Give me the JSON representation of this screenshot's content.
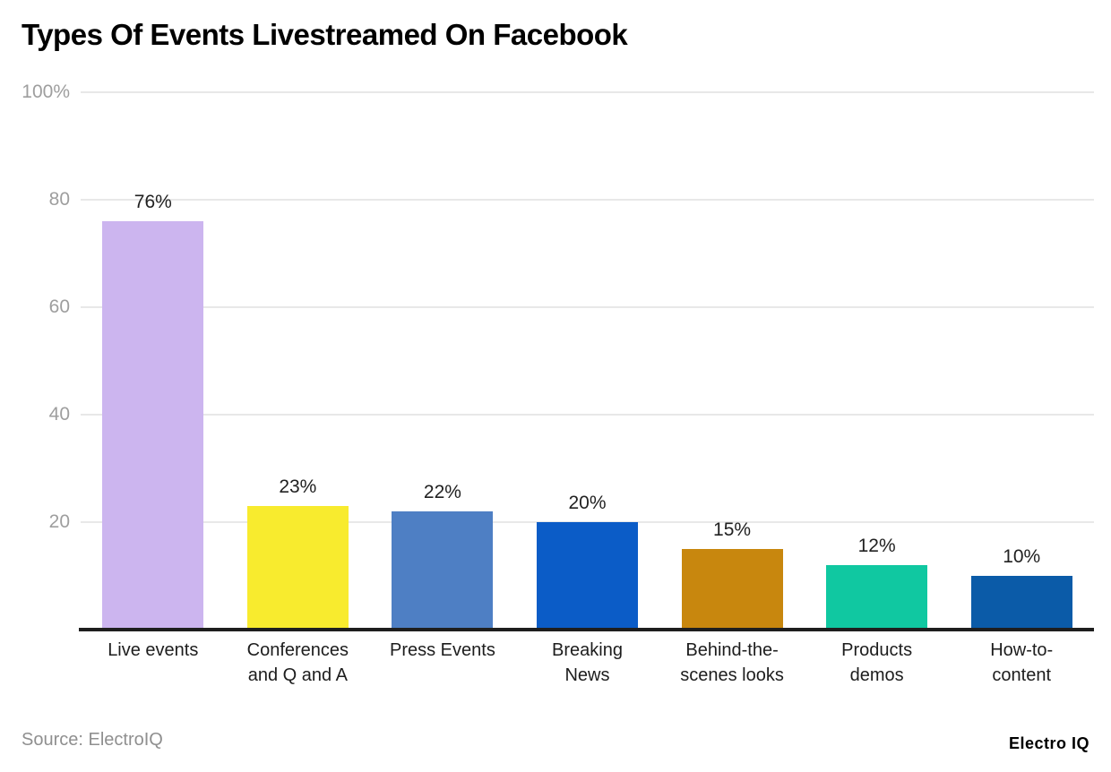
{
  "title": "Types Of Events Livestreamed On Facebook",
  "source": "Source: ElectroIQ",
  "brand": "Electro IQ",
  "colors": {
    "title_text": "#000000",
    "grid": "#e8e8e8",
    "axis_line": "#1e1e1e",
    "tick_text": "#9e9e9e",
    "label_text": "#1d1d1d",
    "source_text": "#8f8f8f"
  },
  "chart_data": {
    "type": "bar",
    "title": "Types Of Events Livestreamed On Facebook",
    "xlabel": "",
    "ylabel": "",
    "ylim": [
      0,
      100
    ],
    "grid": true,
    "legend": false,
    "value_suffix": "%",
    "categories": [
      "Live events",
      "Conferences and Q and A",
      "Press Events",
      "Breaking News",
      "Behind-the-scenes looks",
      "Products demos",
      "How-to-content"
    ],
    "category_lines": [
      [
        "Live events"
      ],
      [
        "Conferences",
        "and Q and A"
      ],
      [
        "Press Events"
      ],
      [
        "Breaking",
        "News"
      ],
      [
        "Behind-the-",
        "scenes looks"
      ],
      [
        "Products",
        "demos"
      ],
      [
        "How-to-",
        "content"
      ]
    ],
    "values": [
      76,
      23,
      22,
      20,
      15,
      12,
      10
    ],
    "value_labels": [
      "76%",
      "23%",
      "22%",
      "20%",
      "15%",
      "12%",
      "10%"
    ],
    "bar_colors": [
      "#ccb5ef",
      "#f8eb2e",
      "#4e7fc4",
      "#0b5cc7",
      "#c8870e",
      "#10c8a1",
      "#0b5ba8"
    ],
    "yticks": [
      {
        "value": 100,
        "label": "100%"
      },
      {
        "value": 80,
        "label": "80"
      },
      {
        "value": 60,
        "label": "60"
      },
      {
        "value": 40,
        "label": "40"
      },
      {
        "value": 20,
        "label": "20"
      }
    ]
  }
}
